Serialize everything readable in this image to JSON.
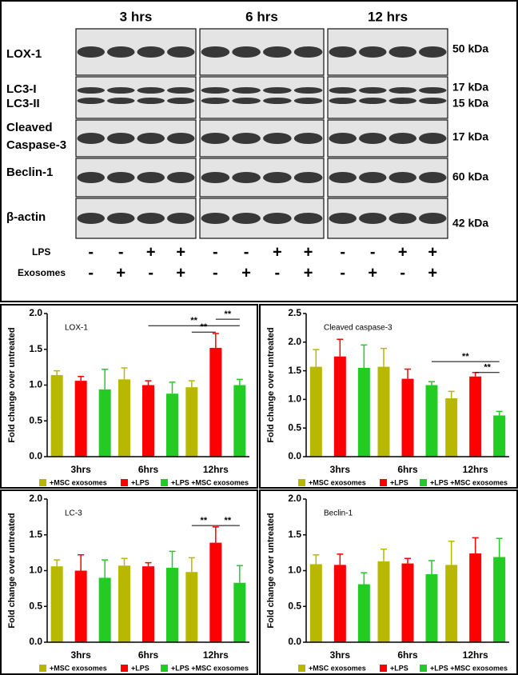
{
  "blot": {
    "time_points": [
      "3 hrs",
      "6 hrs",
      "12 hrs"
    ],
    "row_labels": [
      "LOX-1",
      "LC3-I",
      "LC3-II",
      "Cleaved",
      "Caspase-3",
      "Beclin-1",
      "β-actin"
    ],
    "sizes": [
      "50 kDa",
      "17 kDa",
      "15 kDa",
      "17 kDa",
      "60 kDa",
      "42 kDa"
    ],
    "treatments": [
      {
        "name": "LPS",
        "signs": [
          "-",
          "-",
          "+",
          "+",
          "-",
          "-",
          "+",
          "+",
          "-",
          "-",
          "+",
          "+"
        ]
      },
      {
        "name": "Exosomes",
        "signs": [
          "-",
          "+",
          "-",
          "+",
          "-",
          "+",
          "-",
          "+",
          "-",
          "+",
          "-",
          "+"
        ]
      }
    ]
  },
  "chart_data": [
    {
      "type": "bar",
      "title": "LOX-1",
      "y_label": "Fold change over untreated",
      "categories": [
        "3hrs",
        "6hrs",
        "12hrs"
      ],
      "series": [
        {
          "name": "+MSC exosomes",
          "color": "#b8b800",
          "values": [
            1.14,
            1.08,
            0.97
          ],
          "errors": [
            0.06,
            0.16,
            0.09
          ]
        },
        {
          "name": "+LPS",
          "color": "#ff0000",
          "values": [
            1.06,
            1.0,
            1.52
          ],
          "errors": [
            0.06,
            0.06,
            0.2
          ]
        },
        {
          "name": "+LPS +MSC exosomes",
          "color": "#22cc22",
          "values": [
            0.94,
            0.88,
            1.0
          ],
          "errors": [
            0.28,
            0.16,
            0.08
          ]
        }
      ],
      "ylim": [
        0,
        2
      ],
      "yticks": [
        {
          "value": 0,
          "label": "0.0"
        },
        0.5,
        {
          "value": 1,
          "label": "1.0"
        },
        1.5,
        {
          "value": 2,
          "label": "2.0"
        }
      ],
      "annotations": [
        {
          "text": "**",
          "y": 1.83,
          "from": [
            "6hrs",
            "+LPS"
          ],
          "to": [
            "12hrs",
            "+LPS +MSC exosomes"
          ]
        },
        {
          "text": "**",
          "y": 1.92,
          "from": [
            "12hrs",
            "+LPS"
          ],
          "to": [
            "12hrs",
            "+LPS +MSC exosomes"
          ]
        },
        {
          "text": "**",
          "y": 1.74,
          "from": [
            "12hrs",
            "+MSC exosomes"
          ],
          "to": [
            "12hrs",
            "+LPS"
          ]
        }
      ]
    },
    {
      "type": "bar",
      "title": "Cleaved caspase-3",
      "y_label": "Fold change over untreated",
      "categories": [
        "3hrs",
        "6hrs",
        "12hrs"
      ],
      "series": [
        {
          "name": "+MSC exosomes",
          "color": "#b8b800",
          "values": [
            1.57,
            1.57,
            1.02
          ],
          "errors": [
            0.3,
            0.32,
            0.12
          ]
        },
        {
          "name": "+LPS",
          "color": "#ff0000",
          "values": [
            1.75,
            1.36,
            1.4
          ],
          "errors": [
            0.3,
            0.17,
            0.07
          ]
        },
        {
          "name": "+LPS +MSC exosomes",
          "color": "#22cc22",
          "values": [
            1.55,
            1.25,
            0.72
          ],
          "errors": [
            0.4,
            0.06,
            0.07
          ]
        }
      ],
      "ylim": [
        0,
        2.5
      ],
      "yticks": [
        {
          "value": 0,
          "label": "0.0"
        },
        0.5,
        {
          "value": 1,
          "label": "1.0"
        },
        1.5,
        {
          "value": 2,
          "label": "2.0"
        },
        2.5
      ],
      "annotations": [
        {
          "text": "**",
          "y": 1.66,
          "from": [
            "6hrs",
            "+LPS +MSC exosomes"
          ],
          "to": [
            "12hrs",
            "+LPS +MSC exosomes"
          ]
        },
        {
          "text": "**",
          "y": 1.47,
          "from": [
            "12hrs",
            "+LPS"
          ],
          "to": [
            "12hrs",
            "+LPS +MSC exosomes"
          ]
        }
      ]
    },
    {
      "type": "bar",
      "title": "LC-3",
      "y_label": "Fold change over untreated",
      "categories": [
        "3hrs",
        "6hrs",
        "12hrs"
      ],
      "series": [
        {
          "name": "+MSC exosomes",
          "color": "#b8b800",
          "values": [
            1.06,
            1.07,
            0.98
          ],
          "errors": [
            0.09,
            0.1,
            0.2
          ]
        },
        {
          "name": "+LPS",
          "color": "#ff0000",
          "values": [
            1.0,
            1.06,
            1.39
          ],
          "errors": [
            0.22,
            0.05,
            0.22
          ]
        },
        {
          "name": "+LPS +MSC exosomes",
          "color": "#22cc22",
          "values": [
            0.9,
            1.04,
            0.83
          ],
          "errors": [
            0.25,
            0.23,
            0.24
          ]
        }
      ],
      "ylim": [
        0,
        2
      ],
      "yticks": [
        {
          "value": 0,
          "label": "0.0"
        },
        0.5,
        {
          "value": 1,
          "label": "1.0"
        },
        1.5,
        {
          "value": 2,
          "label": "2.0"
        }
      ],
      "annotations": [
        {
          "text": "**",
          "y": 1.63,
          "from": [
            "12hrs",
            "+MSC exosomes"
          ],
          "to": [
            "12hrs",
            "+LPS"
          ]
        },
        {
          "text": "**",
          "y": 1.63,
          "from": [
            "12hrs",
            "+LPS"
          ],
          "to": [
            "12hrs",
            "+LPS +MSC exosomes"
          ]
        }
      ]
    },
    {
      "type": "bar",
      "title": "Beclin-1",
      "y_label": "Fold change over untreated",
      "categories": [
        "3hrs",
        "6hrs",
        "12hrs"
      ],
      "series": [
        {
          "name": "+MSC exosomes",
          "color": "#b8b800",
          "values": [
            1.09,
            1.13,
            1.08
          ],
          "errors": [
            0.13,
            0.17,
            0.33
          ]
        },
        {
          "name": "+LPS",
          "color": "#ff0000",
          "values": [
            1.08,
            1.1,
            1.24
          ],
          "errors": [
            0.15,
            0.07,
            0.22
          ]
        },
        {
          "name": "+LPS +MSC exosomes",
          "color": "#22cc22",
          "values": [
            0.81,
            0.95,
            1.19
          ],
          "errors": [
            0.16,
            0.19,
            0.26
          ]
        }
      ],
      "ylim": [
        0,
        2
      ],
      "yticks": [
        {
          "value": 0,
          "label": "0.0"
        },
        0.5,
        {
          "value": 1,
          "label": "1.0"
        },
        1.5,
        {
          "value": 2,
          "label": "2.0"
        }
      ],
      "annotations": []
    }
  ]
}
